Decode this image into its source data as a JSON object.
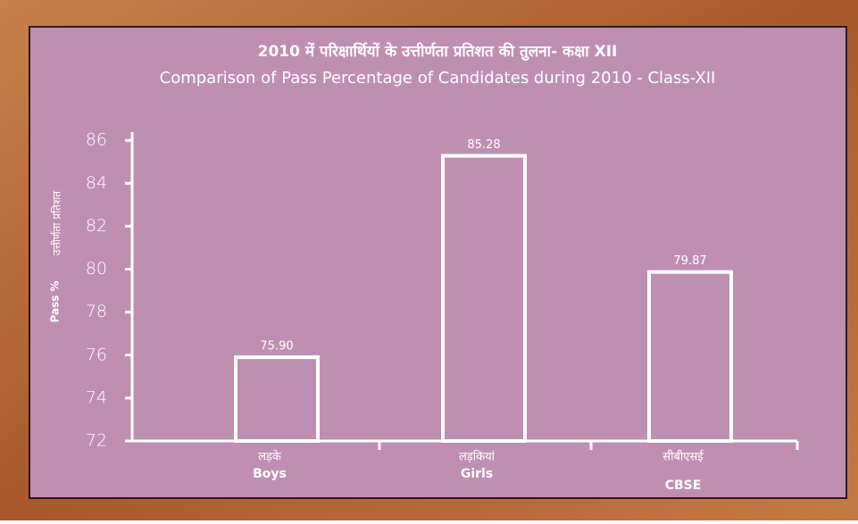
{
  "chart_data": {
    "type": "bar",
    "title": "2010 में परिक्षार्थियों के उत्तीर्णता प्रतिशत की तुलना- कक्षा XII",
    "subtitle": "Comparison of Pass Percentage of Candidates during 2010 - Class-XII",
    "y_label": "Pass %",
    "y_label_hindi": "उत्तीर्णता प्रतिशत",
    "categories": [
      "Boys",
      "Girls",
      "CBSE"
    ],
    "categories_hindi": [
      "लड़के",
      "लड़कियां",
      "सीबीएसई"
    ],
    "values": [
      75.9,
      85.28,
      79.87
    ],
    "value_labels": [
      "75.90",
      "85.28",
      "79.87"
    ],
    "color": "#ffffff",
    "ylim": [
      72,
      86.3
    ],
    "yticks": [
      72,
      74,
      76,
      78,
      80,
      82,
      84,
      86
    ]
  }
}
